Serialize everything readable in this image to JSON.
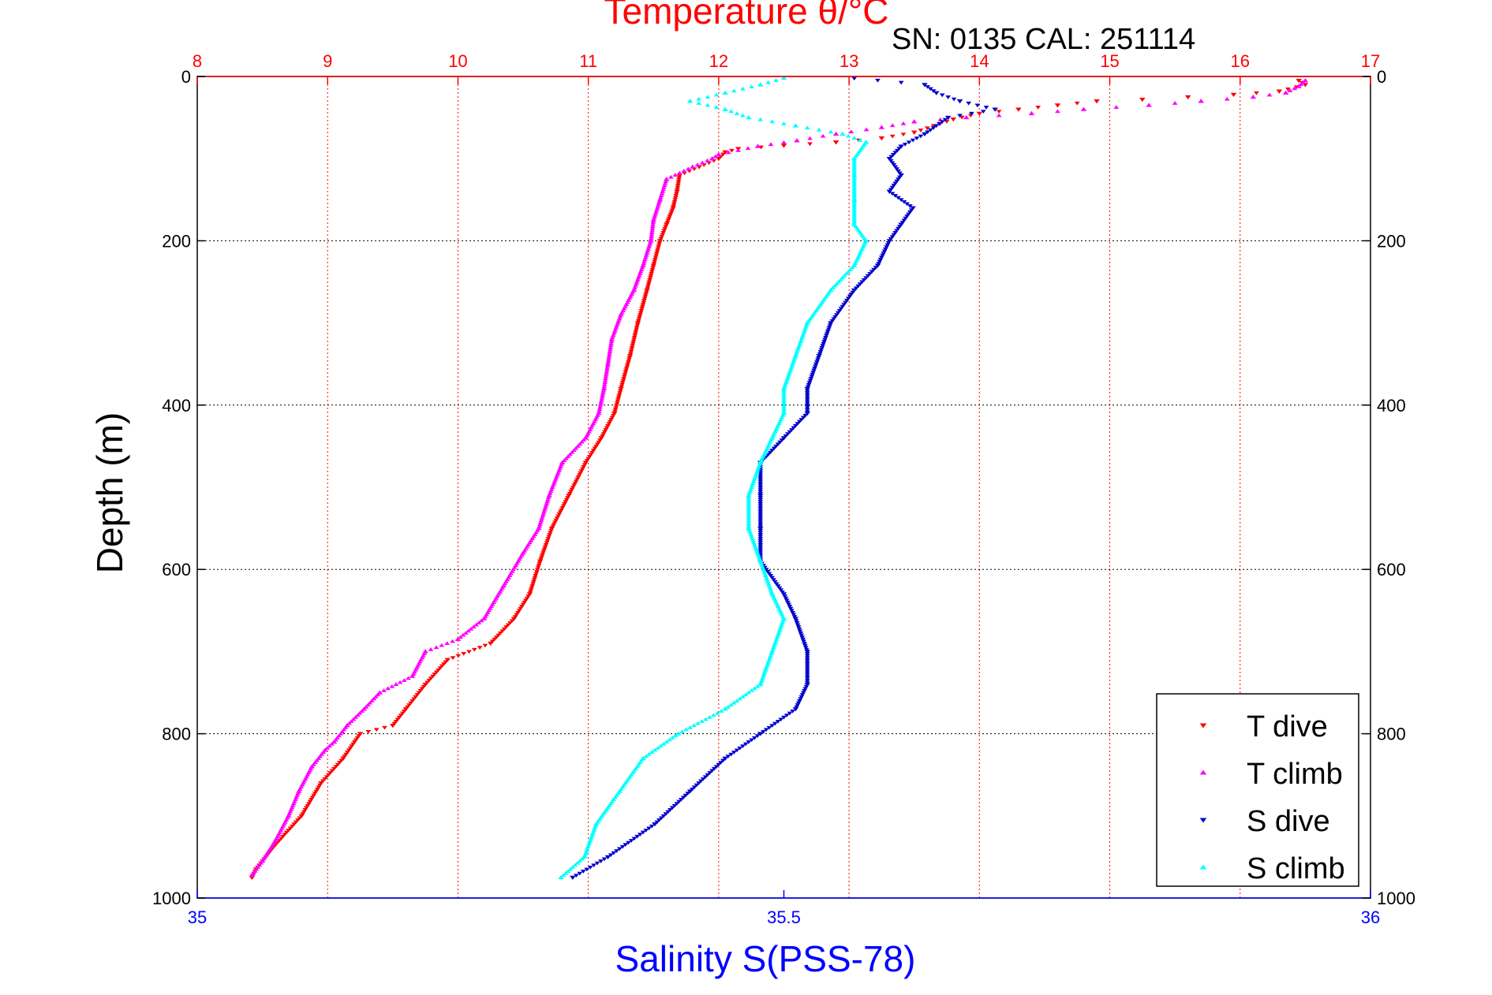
{
  "chart_data": {
    "type": "scatter",
    "title": "Temperature θ/°C",
    "subtitle": "SN: 0135  CAL: 251114",
    "xlabel": "Salinity S(PSS-78)",
    "ylabel": "Depth (m)",
    "x_top": {
      "label": "Temperature θ/°C",
      "range": [
        8,
        17
      ],
      "ticks": [
        "8",
        "9",
        "10",
        "11",
        "12",
        "13",
        "14",
        "15",
        "16",
        "17"
      ],
      "color": "#ff0000"
    },
    "x_bottom": {
      "label": "Salinity S(PSS-78)",
      "range": [
        35,
        36
      ],
      "ticks": [
        "35",
        "35.5",
        "36"
      ],
      "color": "#0000ff"
    },
    "y": {
      "range": [
        0,
        1000
      ],
      "inverted": true,
      "ticks": [
        "0",
        "200",
        "400",
        "600",
        "800",
        "1000"
      ]
    },
    "grid": true,
    "legend_position": "bottom-right",
    "colors": {
      "t_dive": "#ff0000",
      "t_climb": "#ff00ff",
      "s_dive": "#0000cc",
      "s_climb": "#00ffff",
      "grid": "#ff0000",
      "frame": "#000000"
    },
    "series": [
      {
        "name": "T dive",
        "axis": "temperature",
        "marker": "v",
        "color": "#ff0000",
        "points": [
          [
            16.45,
            5
          ],
          [
            16.5,
            10
          ],
          [
            16.3,
            18
          ],
          [
            15.95,
            22
          ],
          [
            15.6,
            25
          ],
          [
            15.25,
            28
          ],
          [
            14.9,
            30
          ],
          [
            14.6,
            35
          ],
          [
            14.3,
            40
          ],
          [
            14.0,
            45
          ],
          [
            13.8,
            52
          ],
          [
            13.65,
            60
          ],
          [
            13.5,
            68
          ],
          [
            13.25,
            75
          ],
          [
            12.9,
            80
          ],
          [
            12.5,
            84
          ],
          [
            12.15,
            88
          ],
          [
            12.05,
            92
          ],
          [
            12.0,
            100
          ],
          [
            11.85,
            110
          ],
          [
            11.7,
            120
          ],
          [
            11.68,
            140
          ],
          [
            11.65,
            160
          ],
          [
            11.6,
            180
          ],
          [
            11.55,
            200
          ],
          [
            11.5,
            230
          ],
          [
            11.45,
            260
          ],
          [
            11.38,
            300
          ],
          [
            11.32,
            340
          ],
          [
            11.25,
            380
          ],
          [
            11.2,
            410
          ],
          [
            11.1,
            440
          ],
          [
            10.98,
            470
          ],
          [
            10.85,
            510
          ],
          [
            10.72,
            550
          ],
          [
            10.63,
            590
          ],
          [
            10.55,
            630
          ],
          [
            10.43,
            660
          ],
          [
            10.25,
            690
          ],
          [
            9.92,
            710
          ],
          [
            9.75,
            740
          ],
          [
            9.6,
            770
          ],
          [
            9.5,
            790
          ],
          [
            9.25,
            800
          ],
          [
            9.12,
            830
          ],
          [
            8.95,
            860
          ],
          [
            8.8,
            900
          ],
          [
            8.6,
            935
          ],
          [
            8.45,
            965
          ],
          [
            8.42,
            975
          ]
        ]
      },
      {
        "name": "T climb",
        "axis": "temperature",
        "marker": "^",
        "color": "#ff00ff",
        "points": [
          [
            16.5,
            5
          ],
          [
            16.45,
            12
          ],
          [
            16.35,
            20
          ],
          [
            16.1,
            25
          ],
          [
            15.7,
            30
          ],
          [
            15.3,
            35
          ],
          [
            14.8,
            40
          ],
          [
            14.4,
            45
          ],
          [
            13.9,
            50
          ],
          [
            13.5,
            55
          ],
          [
            13.25,
            62
          ],
          [
            12.9,
            70
          ],
          [
            12.6,
            78
          ],
          [
            12.3,
            85
          ],
          [
            12.0,
            95
          ],
          [
            11.95,
            100
          ],
          [
            11.8,
            110
          ],
          [
            11.6,
            125
          ],
          [
            11.55,
            150
          ],
          [
            11.5,
            175
          ],
          [
            11.48,
            200
          ],
          [
            11.42,
            230
          ],
          [
            11.35,
            260
          ],
          [
            11.25,
            290
          ],
          [
            11.18,
            320
          ],
          [
            11.15,
            350
          ],
          [
            11.12,
            380
          ],
          [
            11.08,
            410
          ],
          [
            10.98,
            440
          ],
          [
            10.8,
            470
          ],
          [
            10.7,
            510
          ],
          [
            10.62,
            550
          ],
          [
            10.5,
            580
          ],
          [
            10.35,
            620
          ],
          [
            10.2,
            660
          ],
          [
            10.0,
            685
          ],
          [
            9.75,
            700
          ],
          [
            9.65,
            730
          ],
          [
            9.4,
            750
          ],
          [
            9.28,
            770
          ],
          [
            9.15,
            790
          ],
          [
            9.05,
            810
          ],
          [
            8.98,
            820
          ],
          [
            8.88,
            840
          ],
          [
            8.78,
            870
          ],
          [
            8.7,
            900
          ],
          [
            8.6,
            930
          ],
          [
            8.5,
            955
          ],
          [
            8.42,
            972
          ]
        ]
      },
      {
        "name": "S dive",
        "axis": "salinity",
        "marker": "v",
        "color": "#0000cc",
        "points": [
          [
            35.56,
            2
          ],
          [
            35.62,
            10
          ],
          [
            35.63,
            20
          ],
          [
            35.65,
            30
          ],
          [
            35.68,
            40
          ],
          [
            35.64,
            50
          ],
          [
            35.62,
            70
          ],
          [
            35.6,
            85
          ],
          [
            35.59,
            100
          ],
          [
            35.6,
            120
          ],
          [
            35.59,
            140
          ],
          [
            35.61,
            160
          ],
          [
            35.6,
            180
          ],
          [
            35.59,
            200
          ],
          [
            35.58,
            230
          ],
          [
            35.56,
            260
          ],
          [
            35.54,
            300
          ],
          [
            35.53,
            340
          ],
          [
            35.52,
            380
          ],
          [
            35.52,
            410
          ],
          [
            35.5,
            440
          ],
          [
            35.48,
            470
          ],
          [
            35.48,
            510
          ],
          [
            35.48,
            550
          ],
          [
            35.48,
            590
          ],
          [
            35.5,
            630
          ],
          [
            35.51,
            660
          ],
          [
            35.52,
            700
          ],
          [
            35.52,
            740
          ],
          [
            35.51,
            770
          ],
          [
            35.48,
            800
          ],
          [
            35.45,
            830
          ],
          [
            35.42,
            870
          ],
          [
            35.39,
            910
          ],
          [
            35.35,
            950
          ],
          [
            35.32,
            975
          ]
        ]
      },
      {
        "name": "S climb",
        "axis": "salinity",
        "marker": "^",
        "color": "#00ffff",
        "points": [
          [
            35.5,
            2
          ],
          [
            35.48,
            10
          ],
          [
            35.45,
            20
          ],
          [
            35.42,
            30
          ],
          [
            35.45,
            40
          ],
          [
            35.47,
            50
          ],
          [
            35.51,
            60
          ],
          [
            35.55,
            70
          ],
          [
            35.57,
            80
          ],
          [
            35.56,
            100
          ],
          [
            35.56,
            120
          ],
          [
            35.56,
            150
          ],
          [
            35.56,
            180
          ],
          [
            35.57,
            200
          ],
          [
            35.56,
            230
          ],
          [
            35.54,
            260
          ],
          [
            35.52,
            300
          ],
          [
            35.51,
            340
          ],
          [
            35.5,
            380
          ],
          [
            35.5,
            410
          ],
          [
            35.49,
            440
          ],
          [
            35.48,
            470
          ],
          [
            35.47,
            510
          ],
          [
            35.47,
            550
          ],
          [
            35.48,
            590
          ],
          [
            35.49,
            630
          ],
          [
            35.5,
            660
          ],
          [
            35.49,
            700
          ],
          [
            35.48,
            740
          ],
          [
            35.45,
            770
          ],
          [
            35.41,
            800
          ],
          [
            35.38,
            830
          ],
          [
            35.36,
            870
          ],
          [
            35.34,
            910
          ],
          [
            35.33,
            950
          ],
          [
            35.31,
            975
          ]
        ]
      }
    ]
  }
}
